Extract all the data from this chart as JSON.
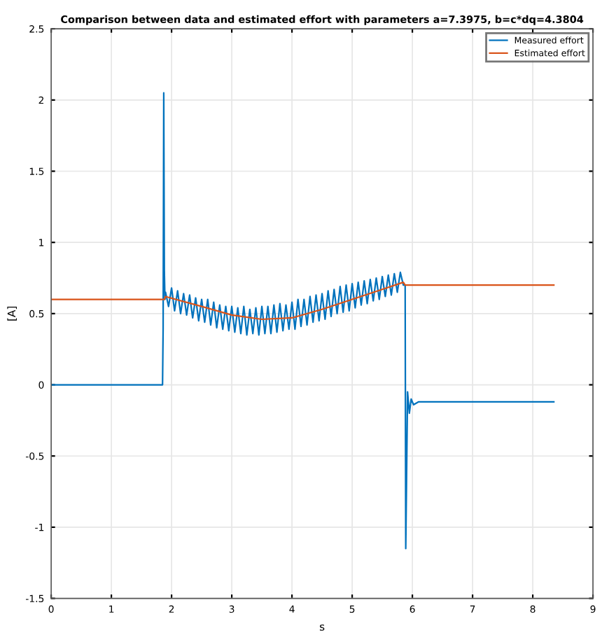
{
  "chart_data": {
    "type": "line",
    "title": "Comparison between data and estimated effort with parameters a=7.3975, b=c*dq=4.3804",
    "xlabel": "s",
    "ylabel": "[A]",
    "xlim": [
      0,
      9
    ],
    "xticks": [
      0,
      1,
      2,
      3,
      4,
      5,
      6,
      7,
      8,
      9
    ],
    "ylim": [
      -1.5,
      2.5
    ],
    "yticks": [
      -1.5,
      -1,
      -0.5,
      0,
      0.5,
      1,
      1.5,
      2,
      2.5
    ],
    "grid": true,
    "legend": "top right",
    "line_style": "solid",
    "marker": "none",
    "series": [
      {
        "name": "Measured effort",
        "color": "#0072bd",
        "x": [
          0,
          1.85,
          1.86,
          1.87,
          1.88,
          1.89,
          1.9,
          1.95,
          2.0,
          2.05,
          2.1,
          2.15,
          2.2,
          2.25,
          2.3,
          2.35,
          2.4,
          2.45,
          2.5,
          2.55,
          2.6,
          2.65,
          2.7,
          2.75,
          2.8,
          2.85,
          2.9,
          2.95,
          3.0,
          3.05,
          3.1,
          3.15,
          3.2,
          3.25,
          3.3,
          3.35,
          3.4,
          3.45,
          3.5,
          3.55,
          3.6,
          3.65,
          3.7,
          3.75,
          3.8,
          3.85,
          3.9,
          3.95,
          4.0,
          4.05,
          4.1,
          4.15,
          4.2,
          4.25,
          4.3,
          4.35,
          4.4,
          4.45,
          4.5,
          4.55,
          4.6,
          4.65,
          4.7,
          4.75,
          4.8,
          4.85,
          4.9,
          4.95,
          5.0,
          5.05,
          5.1,
          5.15,
          5.2,
          5.25,
          5.3,
          5.35,
          5.4,
          5.45,
          5.5,
          5.55,
          5.6,
          5.65,
          5.7,
          5.75,
          5.8,
          5.85,
          5.88,
          5.89,
          5.92,
          5.95,
          5.98,
          6.02,
          6.1,
          8.35
        ],
        "values": [
          0,
          0,
          0.4,
          2.05,
          0.8,
          0.6,
          0.65,
          0.55,
          0.68,
          0.52,
          0.66,
          0.5,
          0.64,
          0.49,
          0.63,
          0.47,
          0.61,
          0.45,
          0.6,
          0.44,
          0.6,
          0.42,
          0.58,
          0.4,
          0.56,
          0.39,
          0.55,
          0.38,
          0.55,
          0.37,
          0.54,
          0.36,
          0.55,
          0.35,
          0.53,
          0.36,
          0.54,
          0.35,
          0.55,
          0.36,
          0.55,
          0.36,
          0.56,
          0.37,
          0.57,
          0.38,
          0.56,
          0.39,
          0.58,
          0.39,
          0.6,
          0.41,
          0.6,
          0.42,
          0.62,
          0.44,
          0.63,
          0.45,
          0.64,
          0.46,
          0.66,
          0.48,
          0.67,
          0.5,
          0.69,
          0.51,
          0.7,
          0.52,
          0.71,
          0.54,
          0.72,
          0.56,
          0.73,
          0.57,
          0.74,
          0.59,
          0.75,
          0.6,
          0.76,
          0.62,
          0.77,
          0.63,
          0.78,
          0.65,
          0.79,
          0.7,
          0.7,
          -1.15,
          -0.05,
          -0.2,
          -0.1,
          -0.14,
          -0.12,
          -0.12
        ]
      },
      {
        "name": "Estimated effort",
        "color": "#d95319",
        "x": [
          0,
          1.88,
          1.9,
          2.5,
          3.0,
          3.5,
          4.0,
          4.5,
          5.0,
          5.5,
          5.85,
          5.88,
          8.35
        ],
        "values": [
          0.6,
          0.6,
          0.62,
          0.55,
          0.49,
          0.46,
          0.47,
          0.53,
          0.6,
          0.67,
          0.72,
          0.7,
          0.7
        ]
      }
    ]
  }
}
